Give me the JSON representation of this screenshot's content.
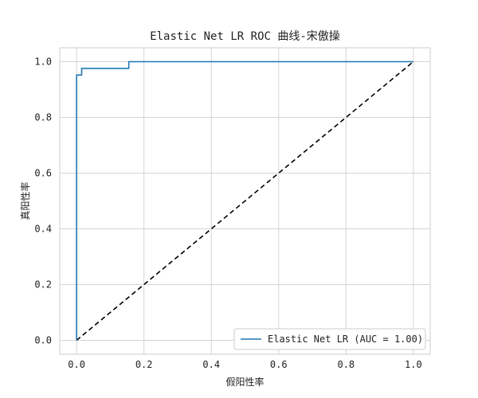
{
  "chart_data": {
    "type": "line",
    "title": "Elastic Net LR ROC 曲线-宋傲操",
    "xlabel": "假阳性率",
    "ylabel": "真阳性率",
    "xlim": [
      -0.05,
      1.05
    ],
    "ylim": [
      -0.05,
      1.05
    ],
    "xticks": [
      0.0,
      0.2,
      0.4,
      0.6,
      0.8,
      1.0
    ],
    "yticks": [
      0.0,
      0.2,
      0.4,
      0.6,
      0.8,
      1.0
    ],
    "xtick_labels": [
      "0.0",
      "0.2",
      "0.4",
      "0.6",
      "0.8",
      "1.0"
    ],
    "ytick_labels": [
      "0.0",
      "0.2",
      "0.4",
      "0.6",
      "0.8",
      "1.0"
    ],
    "grid": true,
    "legend_position": "lower-right",
    "series": [
      {
        "name": "Elastic Net LR (AUC = 1.00)",
        "color": "#1f77b4",
        "style": "solid",
        "x": [
          0.0,
          0.0,
          0.0,
          0.015,
          0.015,
          0.155,
          0.155,
          1.0
        ],
        "y": [
          0.0,
          0.952,
          0.952,
          0.952,
          0.976,
          0.976,
          1.0,
          1.0
        ]
      },
      {
        "color": "#000000",
        "style": "dashed",
        "x": [
          0.0,
          1.0
        ],
        "y": [
          0.0,
          1.0
        ]
      }
    ]
  }
}
